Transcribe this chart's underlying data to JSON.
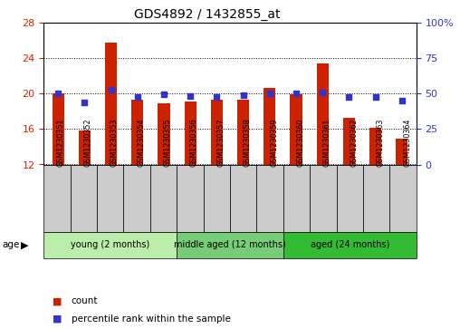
{
  "title": "GDS4892 / 1432855_at",
  "samples": [
    "GSM1230351",
    "GSM1230352",
    "GSM1230353",
    "GSM1230354",
    "GSM1230355",
    "GSM1230356",
    "GSM1230357",
    "GSM1230358",
    "GSM1230359",
    "GSM1230360",
    "GSM1230361",
    "GSM1230362",
    "GSM1230363",
    "GSM1230364"
  ],
  "bar_values": [
    20.0,
    15.8,
    25.8,
    19.3,
    18.9,
    19.1,
    19.3,
    19.3,
    20.7,
    19.9,
    23.4,
    17.3,
    16.2,
    14.9
  ],
  "bar_bottom": 12,
  "percentile_values": [
    50.0,
    44.0,
    53.0,
    48.0,
    49.5,
    48.5,
    48.0,
    49.0,
    50.5,
    50.0,
    51.0,
    47.5,
    47.5,
    45.0
  ],
  "ylim_left": [
    12,
    28
  ],
  "ylim_right": [
    0,
    100
  ],
  "yticks_left": [
    12,
    16,
    20,
    24,
    28
  ],
  "ytick_labels_left": [
    "12",
    "16",
    "20",
    "24",
    "28"
  ],
  "yticks_right": [
    0,
    25,
    50,
    75,
    100
  ],
  "ytick_labels_right": [
    "0",
    "25",
    "50",
    "75",
    "100%"
  ],
  "bar_color": "#cc2200",
  "dot_color": "#3333cc",
  "groups": [
    {
      "label": "young (2 months)",
      "start": 0,
      "end": 5,
      "color": "#bbeeaa"
    },
    {
      "label": "middle aged (12 months)",
      "start": 5,
      "end": 9,
      "color": "#77cc77"
    },
    {
      "label": "aged (24 months)",
      "start": 9,
      "end": 14,
      "color": "#33bb33"
    }
  ],
  "legend_count_label": "count",
  "legend_pct_label": "percentile rank within the sample",
  "tick_label_color_left": "#cc2200",
  "tick_label_color_right": "#3333cc",
  "tick_bg_color": "#cccccc",
  "bar_width": 0.45
}
